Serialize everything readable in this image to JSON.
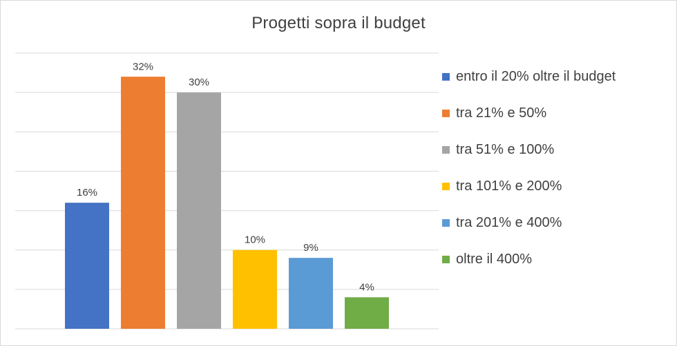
{
  "chart_data": {
    "type": "bar",
    "title": "Progetti sopra  il budget",
    "xlabel": "",
    "ylabel": "",
    "ylim": [
      0,
      35
    ],
    "grid": true,
    "legend_position": "right",
    "value_format": "percent",
    "series": [
      {
        "name": "entro il 20% oltre il budget",
        "value": 16,
        "label": "16%",
        "color": "#4472c4"
      },
      {
        "name": "tra 21% e 50%",
        "value": 32,
        "label": "32%",
        "color": "#ed7d31"
      },
      {
        "name": "tra 51% e 100%",
        "value": 30,
        "label": "30%",
        "color": "#a5a5a5"
      },
      {
        "name": "tra 101% e 200%",
        "value": 10,
        "label": "10%",
        "color": "#ffc000"
      },
      {
        "name": "tra 201% e 400%",
        "value": 9,
        "label": "9%",
        "color": "#5b9bd5"
      },
      {
        "name": "oltre il 400%",
        "value": 4,
        "label": "4%",
        "color": "#70ad47"
      }
    ]
  },
  "colors": {
    "gridline": "#d9d9d9",
    "text": "#404040",
    "border": "#d9d9d9"
  }
}
